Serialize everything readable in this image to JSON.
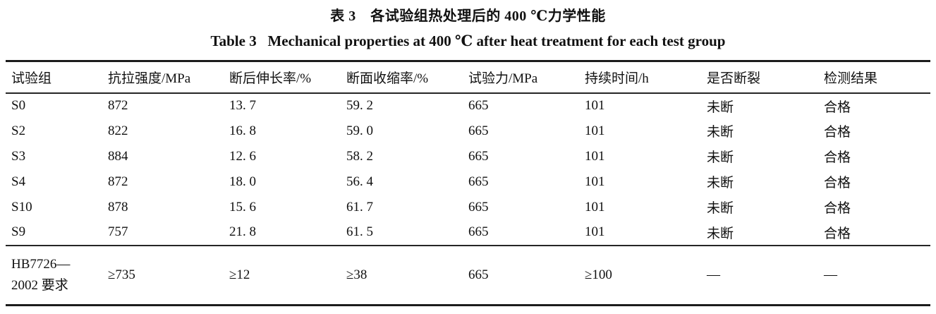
{
  "titles": {
    "zh": "表 3　各试验组热处理后的 400 ℃力学性能",
    "en": "Table 3   Mechanical properties at 400 ℃ after heat treatment for each test group"
  },
  "table": {
    "headers": [
      "试验组",
      "抗拉强度/MPa",
      "断后伸长率/%",
      "断面收缩率/%",
      "试验力/MPa",
      "持续时间/h",
      "是否断裂",
      "检测结果"
    ],
    "rows": [
      [
        "S0",
        "872",
        "13. 7",
        "59. 2",
        "665",
        "101",
        "未断",
        "合格"
      ],
      [
        "S2",
        "822",
        "16. 8",
        "59. 0",
        "665",
        "101",
        "未断",
        "合格"
      ],
      [
        "S3",
        "884",
        "12. 6",
        "58. 2",
        "665",
        "101",
        "未断",
        "合格"
      ],
      [
        "S4",
        "872",
        "18. 0",
        "56. 4",
        "665",
        "101",
        "未断",
        "合格"
      ],
      [
        "S10",
        "878",
        "15. 6",
        "61. 7",
        "665",
        "101",
        "未断",
        "合格"
      ],
      [
        "S9",
        "757",
        "21. 8",
        "61. 5",
        "665",
        "101",
        "未断",
        "合格"
      ]
    ],
    "requirement_row": [
      "HB7726—\n2002 要求",
      "≥735",
      "≥12",
      "≥38",
      "665",
      "≥100",
      "—",
      "—"
    ]
  },
  "colors": {
    "background": "#ffffff",
    "text": "#111111",
    "rule_heavy": "#1c1c1c",
    "rule_light": "#262626"
  }
}
